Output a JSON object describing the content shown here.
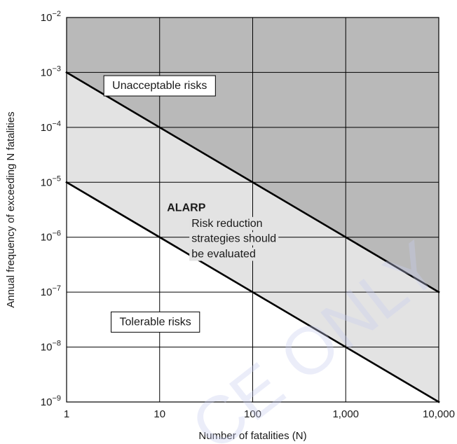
{
  "chart_data": {
    "type": "line",
    "x_scale": "log",
    "y_scale": "log",
    "xlim": [
      1,
      10000
    ],
    "ylim": [
      1e-09,
      0.01
    ],
    "grid": true,
    "xlabel": "Number of fatalities (N)",
    "ylabel": "Annual frequency of exceeding N fatalities",
    "x_ticks": [
      {
        "value": 1,
        "label": "1"
      },
      {
        "value": 10,
        "label": "10"
      },
      {
        "value": 100,
        "label": "100"
      },
      {
        "value": 1000,
        "label": "1,000"
      },
      {
        "value": 10000,
        "label": "10,000"
      }
    ],
    "y_ticks": [
      {
        "value": 1e-09,
        "base": "10",
        "exp": "−9"
      },
      {
        "value": 1e-08,
        "base": "10",
        "exp": "−8"
      },
      {
        "value": 1e-07,
        "base": "10",
        "exp": "−7"
      },
      {
        "value": 1e-06,
        "base": "10",
        "exp": "−6"
      },
      {
        "value": 1e-05,
        "base": "10",
        "exp": "−5"
      },
      {
        "value": 0.0001,
        "base": "10",
        "exp": "−4"
      },
      {
        "value": 0.001,
        "base": "10",
        "exp": "−3"
      },
      {
        "value": 0.01,
        "base": "10",
        "exp": "−2"
      }
    ],
    "series": [
      {
        "x": [
          1,
          10000
        ],
        "y": [
          0.001,
          1e-07
        ]
      },
      {
        "x": [
          1,
          10000
        ],
        "y": [
          1e-05,
          1e-09
        ]
      }
    ],
    "regions": [
      {
        "label": "Unacceptable risks",
        "color": "#b9b9b9",
        "boxed": true,
        "label_at": [
          10,
          0.0005
        ]
      },
      {
        "label": "ALARP",
        "color": "#e3e3e3",
        "boxed": false,
        "label_at": [
          12,
          3e-06
        ]
      },
      {
        "label": "Tolerable risks",
        "color": "#ffffff",
        "boxed": true,
        "label_at": [
          9,
          2.5e-08
        ]
      }
    ],
    "annotations": [
      {
        "text": "Risk reduction",
        "at": [
          22,
          1.55e-06
        ]
      },
      {
        "text": "strategies should",
        "at": [
          22,
          8.2e-07
        ]
      },
      {
        "text": "be evaluated",
        "at": [
          22,
          4.3e-07
        ]
      }
    ],
    "line_color": "#000000",
    "grid_color": "#000000"
  },
  "watermark": {
    "text": "CE ONLY",
    "color": "#c8cdf0"
  }
}
